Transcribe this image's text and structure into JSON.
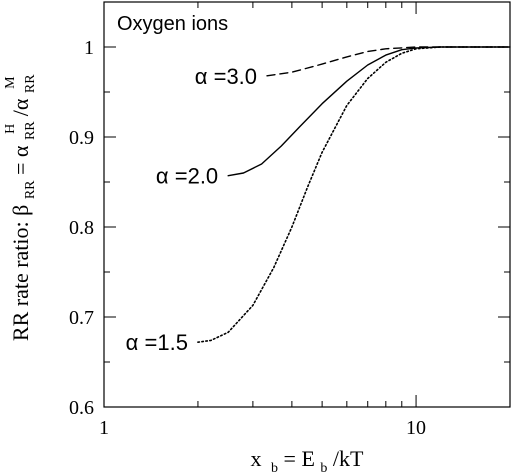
{
  "chart_data": {
    "type": "line",
    "title": "Oxygen ions",
    "xlabel": {
      "base": "x",
      "base_sub": "b",
      "eq": " = E",
      "eq_sub": "b",
      "tail": "/kT"
    },
    "ylabel": {
      "prefix": "RR rate ratio:  β",
      "beta_sub": "RR",
      "eq": " = α",
      "num_sub": "RR",
      "num_sup": "H",
      "slash": "/α",
      "den_sub": "RR",
      "den_sup": "M"
    },
    "xscale": "log",
    "xlim": [
      1,
      20
    ],
    "ylim": [
      0.6,
      1.05
    ],
    "x_ticks": [
      {
        "value": 1,
        "label": "1"
      },
      {
        "value": 10,
        "label": "10"
      }
    ],
    "y_ticks": [
      {
        "value": 0.6,
        "label": "0.6"
      },
      {
        "value": 0.7,
        "label": "0.7"
      },
      {
        "value": 0.8,
        "label": "0.8"
      },
      {
        "value": 0.9,
        "label": "0.9"
      },
      {
        "value": 1.0,
        "label": "1"
      }
    ],
    "grid": false,
    "series": [
      {
        "name": "α =3.0",
        "style": "dashed",
        "x": [
          3.33,
          4.0,
          5.0,
          6.0,
          7.0,
          8.0,
          9.0,
          10.0,
          12.0,
          15.0,
          20.0
        ],
        "y": [
          0.968,
          0.972,
          0.981,
          0.989,
          0.995,
          0.998,
          0.999,
          1.0,
          1.0,
          1.0,
          1.0
        ]
      },
      {
        "name": "α =2.0",
        "style": "solid",
        "x": [
          2.5,
          2.8,
          3.2,
          3.7,
          4.2,
          5.0,
          6.0,
          7.0,
          8.0,
          9.0,
          10.0,
          12.0,
          15.0,
          20.0
        ],
        "y": [
          0.857,
          0.86,
          0.87,
          0.89,
          0.91,
          0.937,
          0.962,
          0.98,
          0.991,
          0.997,
          0.999,
          1.0,
          1.0,
          1.0
        ]
      },
      {
        "name": "α =1.5",
        "style": "dotted",
        "x": [
          2.0,
          2.2,
          2.5,
          3.0,
          3.5,
          4.0,
          4.5,
          5.0,
          6.0,
          7.0,
          8.0,
          9.0,
          10.0,
          12.0,
          15.0,
          20.0
        ],
        "y": [
          0.672,
          0.674,
          0.683,
          0.713,
          0.755,
          0.8,
          0.845,
          0.883,
          0.935,
          0.965,
          0.983,
          0.993,
          0.998,
          1.0,
          1.0,
          1.0
        ]
      }
    ],
    "annotations": [
      {
        "text": "α =3.0",
        "series": 0
      },
      {
        "text": "α =2.0",
        "series": 1
      },
      {
        "text": "α =1.5",
        "series": 2
      }
    ]
  }
}
